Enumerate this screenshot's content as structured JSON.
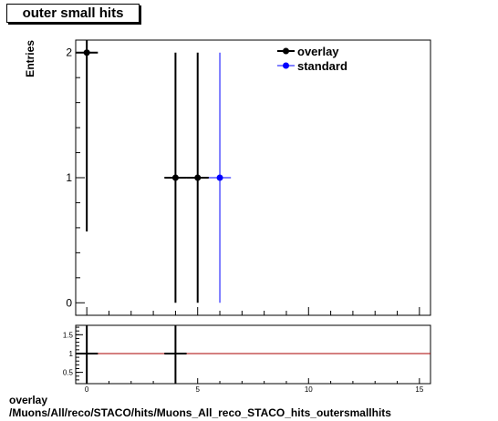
{
  "title": "outer small hits",
  "footer": {
    "line1": "overlay",
    "line2": "/Muons/All/reco/STACO/hits/Muons_All_reco_STACO_hits_outersmallhits"
  },
  "chart_data": [
    {
      "type": "scatter",
      "ylabel": "Entries",
      "xlim": [
        -0.5,
        15.5
      ],
      "ylim": [
        -0.1,
        2.1
      ],
      "y_ticks": [
        "0",
        "1",
        "2"
      ],
      "grid": false,
      "legend_position": "top-right",
      "series": [
        {
          "name": "overlay",
          "color": "#000000",
          "points": [
            {
              "x": 0,
              "y": 2,
              "y_low": 0.57,
              "y_high": 2.1
            },
            {
              "x": 4,
              "y": 1,
              "y_low": 0,
              "y_high": 2
            },
            {
              "x": 5,
              "y": 1,
              "y_low": 0,
              "y_high": 2
            }
          ]
        },
        {
          "name": "standard",
          "color": "#0000ff",
          "points": [
            {
              "x": 6,
              "y": 1,
              "y_low": 0,
              "y_high": 2
            }
          ]
        }
      ]
    },
    {
      "type": "scatter",
      "xlim": [
        -0.5,
        15.5
      ],
      "ylim": [
        0.2,
        1.75
      ],
      "x_ticks": [
        "0",
        "5",
        "10",
        "15"
      ],
      "y_ticks": [
        "0.5",
        "1",
        "1.5"
      ],
      "reference_line": {
        "y": 1,
        "color": "#aa0000"
      },
      "series": [
        {
          "color": "#000000",
          "points": [
            {
              "x": 0,
              "y": 1
            },
            {
              "x": 4,
              "y": 1
            }
          ]
        }
      ]
    }
  ]
}
